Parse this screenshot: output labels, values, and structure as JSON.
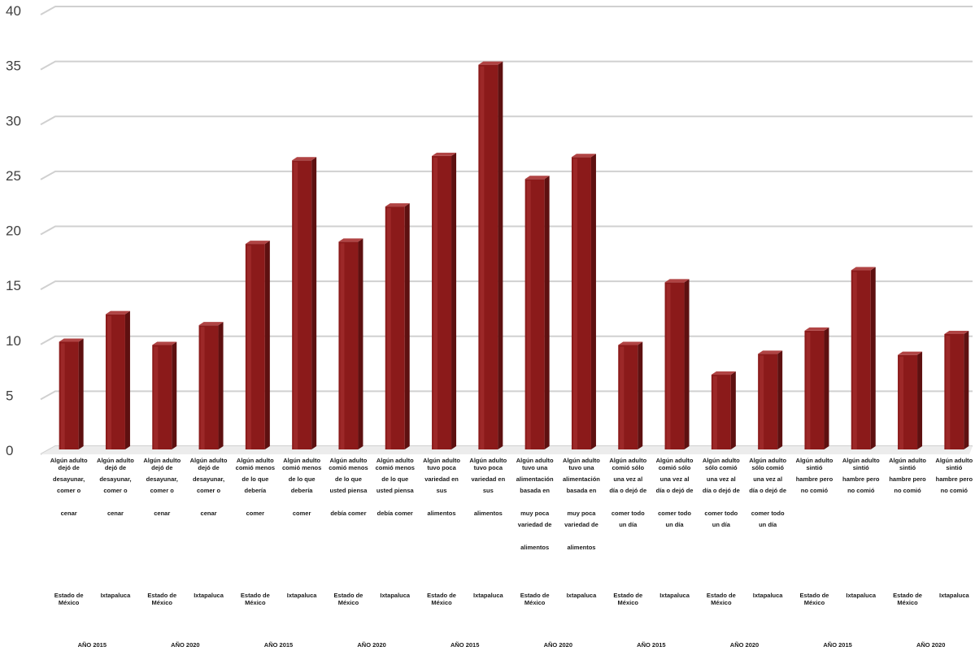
{
  "chart_data": {
    "type": "bar",
    "title": "",
    "xlabel": "",
    "ylabel": "",
    "ylim": [
      0,
      40
    ],
    "yticks": [
      "0",
      "5",
      "10",
      "15",
      "20",
      "25",
      "30",
      "35",
      "40"
    ],
    "grid": true,
    "legend": "none",
    "bar_color": "#8b1a1a",
    "categories": [
      {
        "label": [
          "Algún adulto",
          "dejó de",
          "desayunar,",
          "comer o",
          "",
          "cenar"
        ],
        "region": "Estado de México",
        "value": 9.8
      },
      {
        "label": [
          "Algún adulto",
          "dejó de",
          "desayunar,",
          "comer o",
          "",
          "cenar"
        ],
        "region": "Ixtapaluca",
        "value": 12.3
      },
      {
        "label": [
          "Algún adulto",
          "dejó de",
          "desayunar,",
          "comer o",
          "",
          "cenar"
        ],
        "region": "Estado de México",
        "value": 9.5
      },
      {
        "label": [
          "Algún adulto",
          "dejó de",
          "desayunar,",
          "comer o",
          "",
          "cenar"
        ],
        "region": "Ixtapaluca",
        "value": 11.3
      },
      {
        "label": [
          "Algún adulto",
          "comió menos",
          "de lo que",
          "debería",
          "",
          "comer"
        ],
        "region": "Estado de México",
        "value": 18.7
      },
      {
        "label": [
          "Algún adulto",
          "comió menos",
          "de lo que",
          "debería",
          "",
          "comer"
        ],
        "region": "Ixtapaluca",
        "value": 26.3
      },
      {
        "label": [
          "Algún adulto",
          "comió menos",
          "de lo que",
          "usted piensa",
          "",
          "debía comer"
        ],
        "region": "Estado de México",
        "value": 18.9
      },
      {
        "label": [
          "Algún adulto",
          "comió menos",
          "de lo que",
          "usted piensa",
          "",
          "debía comer"
        ],
        "region": "Ixtapaluca",
        "value": 22.1
      },
      {
        "label": [
          "Algún adulto",
          "tuvo poca",
          "variedad en",
          "sus",
          "",
          "alimentos"
        ],
        "region": "Estado de México",
        "value": 26.7
      },
      {
        "label": [
          "Algún adulto",
          "tuvo poca",
          "variedad en",
          "sus",
          "",
          "alimentos"
        ],
        "region": "Ixtapaluca",
        "value": 35.0
      },
      {
        "label": [
          "Algún adulto",
          "tuvo una",
          "alimentación",
          "basada en",
          "",
          "muy poca",
          "variedad de",
          "",
          "alimentos"
        ],
        "region": "Estado de México",
        "value": 24.6
      },
      {
        "label": [
          "Algún adulto",
          "tuvo una",
          "alimentación",
          "basada en",
          "",
          "muy poca",
          "variedad de",
          "",
          "alimentos"
        ],
        "region": "Ixtapaluca",
        "value": 26.6
      },
      {
        "label": [
          "Algún adulto",
          "comió sólo",
          "una vez al",
          "día o dejó de",
          "",
          "comer todo",
          "un día"
        ],
        "region": "Estado de México",
        "value": 9.5
      },
      {
        "label": [
          "Algún adulto",
          "comió sólo",
          "una vez al",
          "día o dejó de",
          "",
          "comer todo",
          "un día"
        ],
        "region": "Ixtapaluca",
        "value": 15.2
      },
      {
        "label": [
          "Algún adulto",
          "sólo comió",
          "una vez al",
          "día o dejó de",
          "",
          "comer todo",
          "un día"
        ],
        "region": "Estado de México",
        "value": 6.8
      },
      {
        "label": [
          "Algún adulto",
          "sólo comió",
          "una vez al",
          "día o dejó de",
          "",
          "comer todo",
          "un día"
        ],
        "region": "Ixtapaluca",
        "value": 8.7
      },
      {
        "label": [
          "Algún adulto",
          "sintió",
          "hambre pero",
          "no comió"
        ],
        "region": "Estado de México",
        "value": 10.8
      },
      {
        "label": [
          "Algún adulto",
          "sintió",
          "hambre pero",
          "no comió"
        ],
        "region": "Ixtapaluca",
        "value": 16.3
      },
      {
        "label": [
          "Algún adulto",
          "sintió",
          "hambre pero",
          "no comió"
        ],
        "region": "Estado de México",
        "value": 8.6
      },
      {
        "label": [
          "Algún adulto",
          "sintió",
          "hambre pero",
          "no comió"
        ],
        "region": "Ixtapaluca",
        "value": 10.5
      }
    ],
    "year_labels": [
      "AÑO 2015",
      "AÑO 2020",
      "AÑO 2015",
      "AÑO 2020",
      "AÑO 2015",
      "AÑO 2020",
      "AÑO 2015",
      "AÑO 2020",
      "AÑO 2015",
      "AÑO 2020"
    ]
  }
}
